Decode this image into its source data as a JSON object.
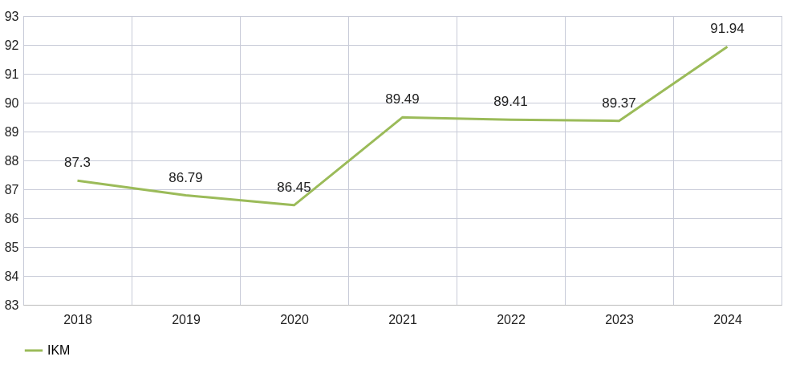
{
  "chart_data": {
    "type": "line",
    "categories": [
      "2018",
      "2019",
      "2020",
      "2021",
      "2022",
      "2023",
      "2024"
    ],
    "series": [
      {
        "name": "IKM",
        "color": "#9bbb59",
        "values": [
          87.3,
          86.79,
          86.45,
          89.49,
          89.41,
          89.37,
          91.94
        ]
      }
    ],
    "ylim": [
      83,
      93
    ],
    "yticks": [
      83,
      84,
      85,
      86,
      87,
      88,
      89,
      90,
      91,
      92,
      93
    ],
    "grid": true,
    "legend": "bottom",
    "data_labels": true,
    "marker": "none"
  }
}
